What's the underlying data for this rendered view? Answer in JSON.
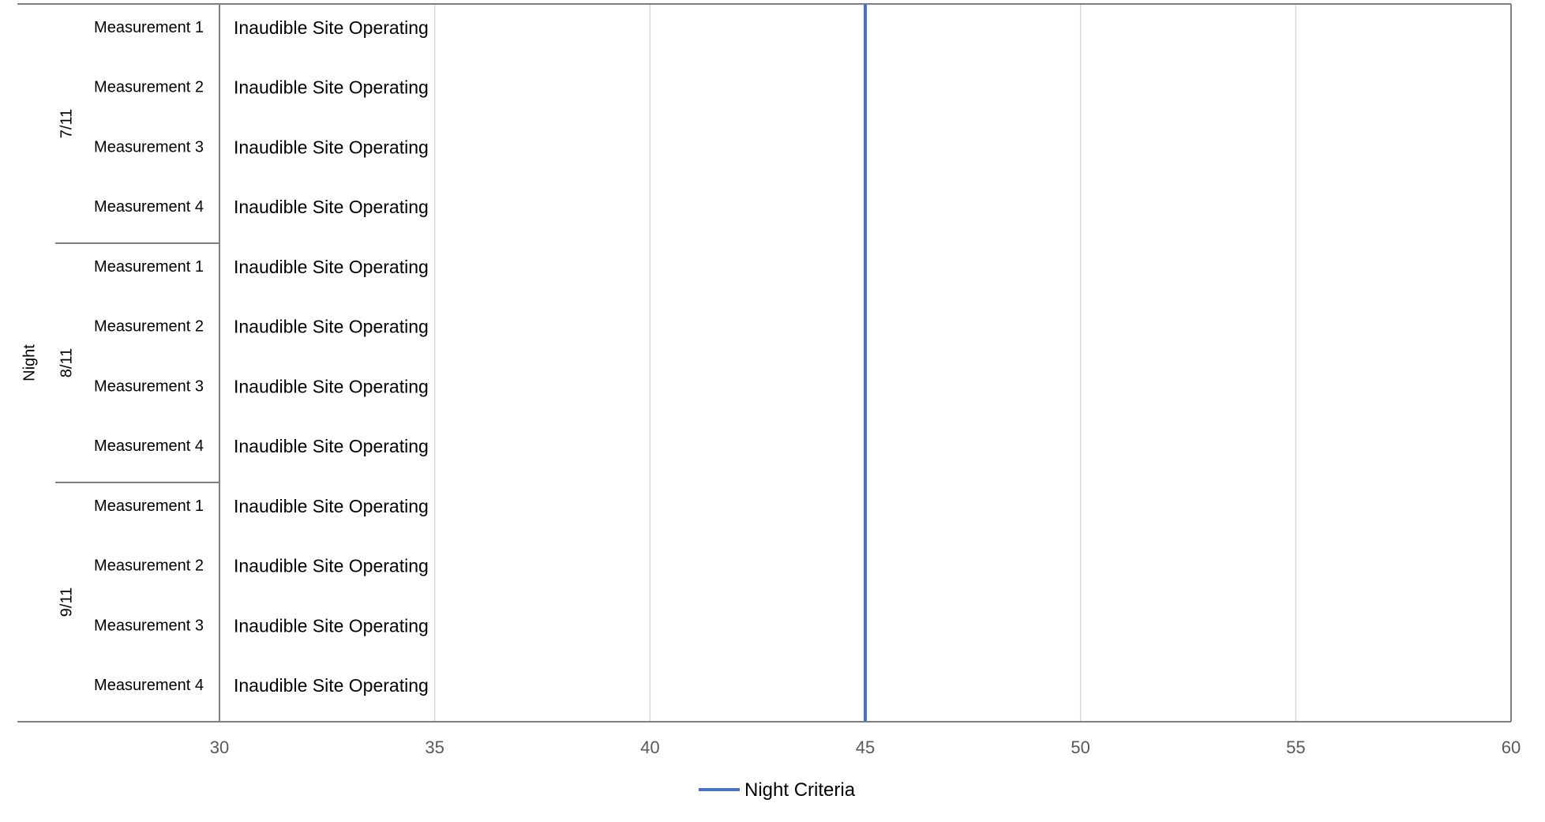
{
  "chart_data": {
    "type": "bar",
    "orientation": "horizontal",
    "title": "",
    "xlabel": "",
    "ylabel": "",
    "xlim": [
      30,
      60
    ],
    "x_ticks": [
      30,
      35,
      40,
      45,
      50,
      55,
      60
    ],
    "grid": true,
    "outer_group": "Night",
    "groups": [
      {
        "label": "7/11",
        "rows": [
          {
            "label": "Measurement 1",
            "status": "Inaudible Site Operating"
          },
          {
            "label": "Measurement 2",
            "status": "Inaudible Site Operating"
          },
          {
            "label": "Measurement 3",
            "status": "Inaudible Site Operating"
          },
          {
            "label": "Measurement 4",
            "status": "Inaudible Site Operating"
          }
        ]
      },
      {
        "label": "8/11",
        "rows": [
          {
            "label": "Measurement 1",
            "status": "Inaudible Site Operating"
          },
          {
            "label": "Measurement 2",
            "status": "Inaudible Site Operating"
          },
          {
            "label": "Measurement 3",
            "status": "Inaudible Site Operating"
          },
          {
            "label": "Measurement 4",
            "status": "Inaudible Site Operating"
          }
        ]
      },
      {
        "label": "9/11",
        "rows": [
          {
            "label": "Measurement 1",
            "status": "Inaudible Site Operating"
          },
          {
            "label": "Measurement 2",
            "status": "Inaudible Site Operating"
          },
          {
            "label": "Measurement 3",
            "status": "Inaudible Site Operating"
          },
          {
            "label": "Measurement 4",
            "status": "Inaudible Site Operating"
          }
        ]
      }
    ],
    "series": [
      {
        "name": "Night Criteria",
        "type": "vertical-line",
        "value": 45,
        "color": "#4472C4"
      }
    ],
    "legend": {
      "position": "bottom",
      "entries": [
        "Night Criteria"
      ]
    },
    "colors": {
      "plot_border": "#7f7f7f",
      "gridline": "#d9d9d9",
      "tick_text": "#595959",
      "criteria_line": "#4472C4"
    }
  }
}
